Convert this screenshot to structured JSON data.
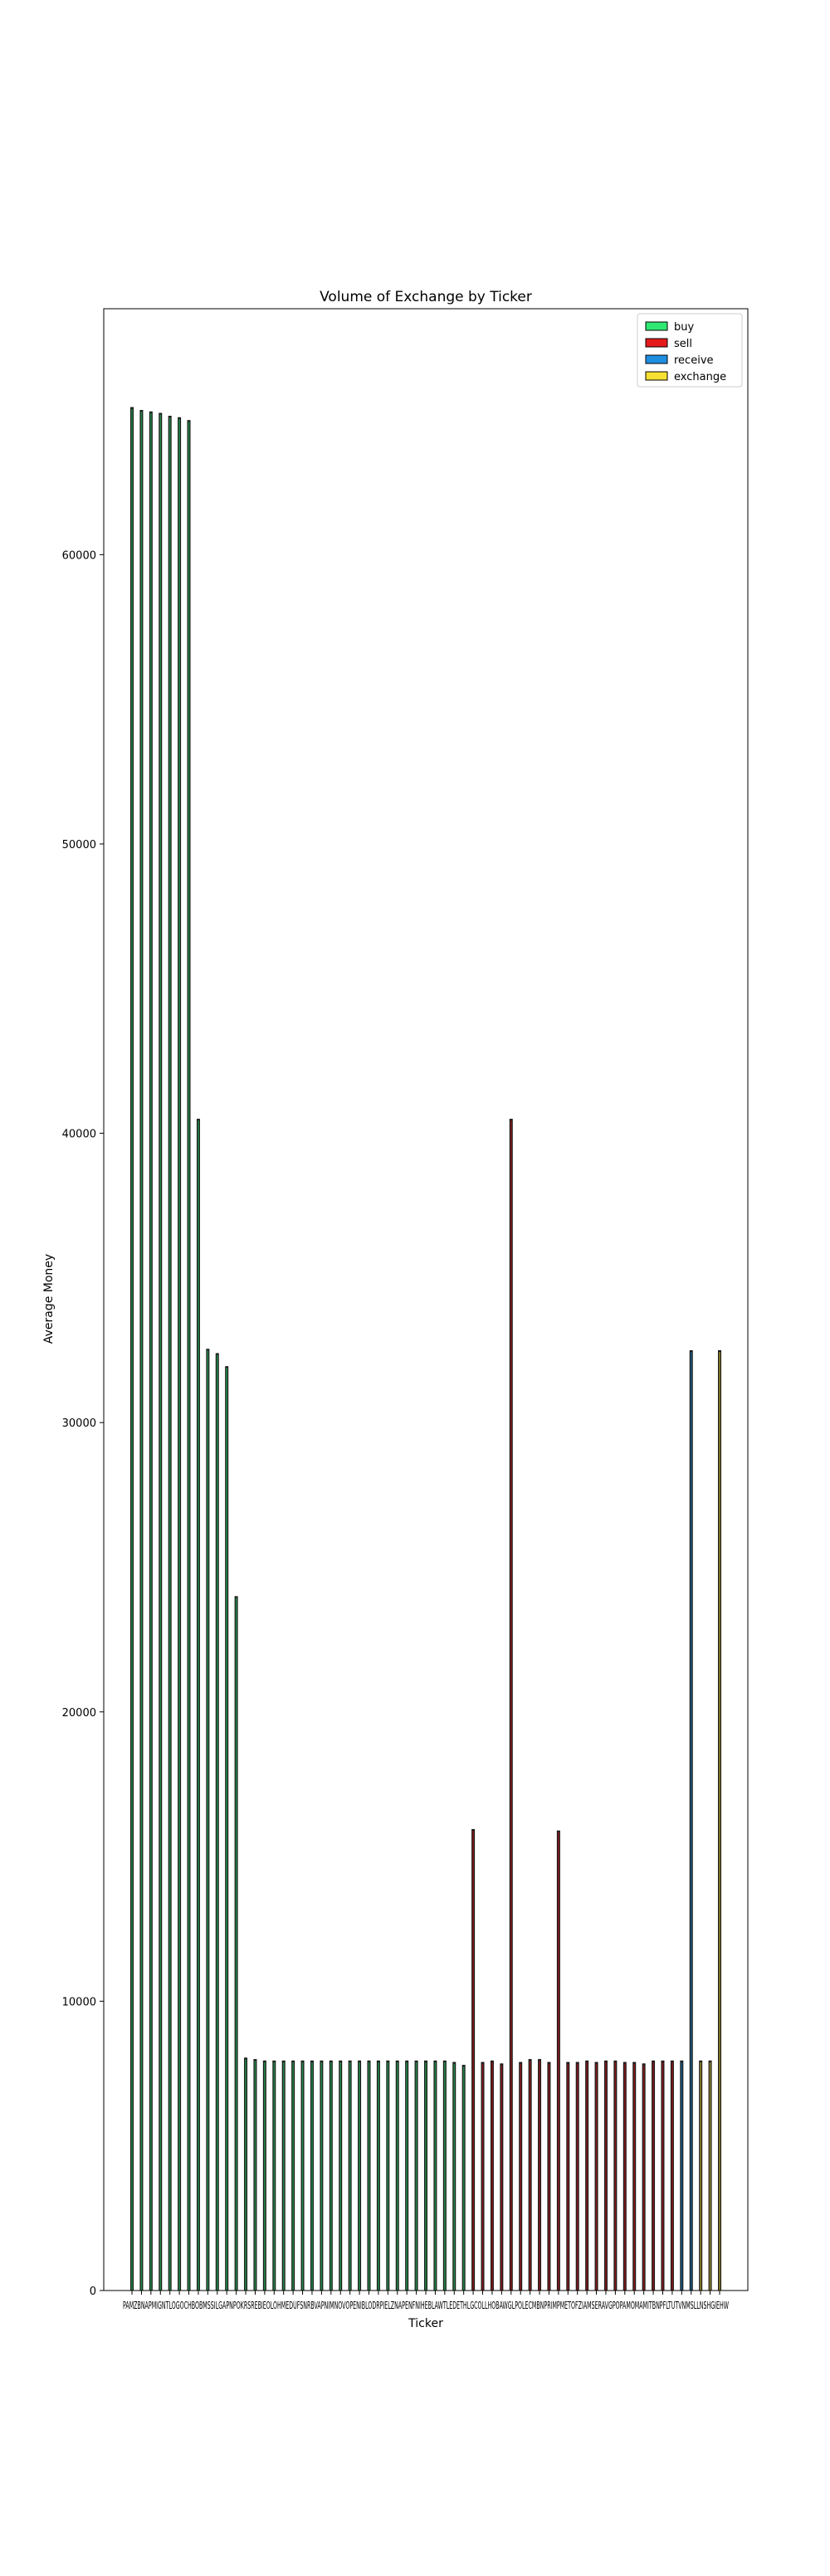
{
  "chart_data": {
    "type": "bar",
    "title": "Volume of Exchange by Ticker",
    "xlabel": "Ticker",
    "ylabel": "Average Money",
    "ylim": [
      0,
      68500
    ],
    "yticks": [
      0,
      10000,
      20000,
      30000,
      40000,
      50000,
      60000
    ],
    "ytick_labels": [
      "0",
      "10000",
      "20000",
      "30000",
      "40000",
      "50000",
      "60000"
    ],
    "tick_labels_text": "PAMZBNAPMIGNTLOGOCHBOBMSSILGAPNPOKRSREBIEOLOHMEDUFSNRBVAPNIMNOVOPENIBLODRPIELZNAPENFNIHEBLAWTLEDETHLGCOLLHOBAWGLPOLECMBNPRIMPMETOFZIAMSERAVGPOPAMOMAMITBNPFLTUTVNMSLLNSHGIEHW",
    "legend_placement": "top-right",
    "legend": [
      {
        "label": "buy",
        "color": "#2ee872"
      },
      {
        "label": "sell",
        "color": "#e41a1c"
      },
      {
        "label": "receive",
        "color": "#1f8fe0"
      },
      {
        "label": "exchange",
        "color": "#f7e031"
      }
    ],
    "bar_color": "#1a1a1a",
    "series": [
      {
        "name": "buy",
        "color": "#2ee872",
        "values": [
          65100,
          65000,
          64950,
          64900,
          64800,
          64750,
          64650,
          40500,
          32550,
          32400,
          31950,
          24000,
          8050,
          8000,
          7950,
          7950,
          7950,
          7950,
          7950,
          7950,
          7950,
          7950,
          7950,
          7950,
          7950,
          7950,
          7950,
          7950,
          7950,
          7950,
          7950,
          7950,
          7950,
          7950,
          7900,
          7800
        ]
      },
      {
        "name": "sell",
        "color": "#e41a1c",
        "values": [
          15950,
          7900,
          7950,
          7850,
          40500,
          7900,
          8000,
          8000,
          7900,
          15900,
          7900,
          7900,
          7950,
          7900,
          7950,
          7950,
          7900,
          7900,
          7850,
          7950,
          7950,
          7950
        ]
      },
      {
        "name": "receive",
        "color": "#1f8fe0",
        "values": [
          7950,
          32500
        ]
      },
      {
        "name": "exchange",
        "color": "#f7e031",
        "values": [
          7950,
          7950,
          32500
        ]
      }
    ]
  }
}
